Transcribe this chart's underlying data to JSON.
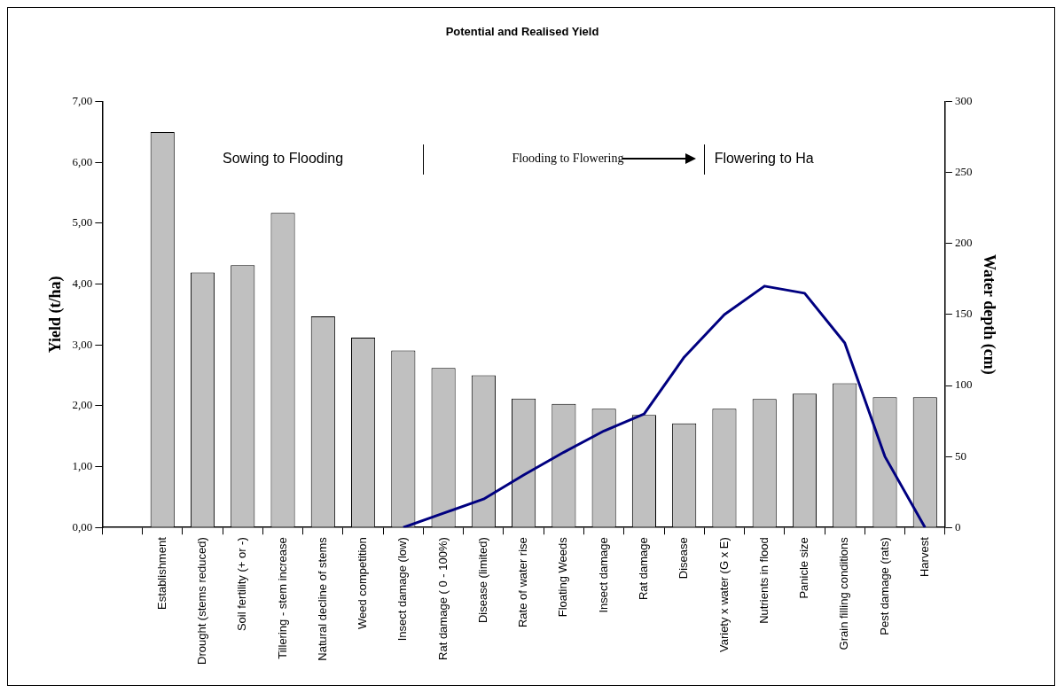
{
  "chart_data": {
    "type": "bar",
    "title": "Potential and Realised Yield",
    "ylabel": "Yield (t/ha)",
    "y2label": "Water depth (cm)",
    "categories": [
      null,
      "Establishment",
      "Drought (stems reduced)",
      "Soil fertility (+ or -)",
      "Tillering - stem increase",
      "Natural decline of stems",
      "Weed competition",
      "Insect damage (low)",
      "Rat damage ( 0 - 100%)",
      "Disease (limited)",
      "Rate of water rise",
      "Floating Weeds",
      "Insect damage",
      "Rat damage",
      "Disease",
      "Variety x water (G x E)",
      "Nutrients in flood",
      "Panicle size",
      "Grain filling conditions",
      "Pest damage (rats)",
      "Harvest"
    ],
    "series": [
      {
        "color": "#c0c0c0",
        "values": [
          null,
          6.5,
          4.19,
          4.31,
          5.17,
          3.47,
          3.12,
          2.91,
          2.62,
          2.5,
          2.12,
          2.03,
          1.95,
          1.85,
          1.71,
          1.95,
          2.11,
          2.2,
          2.37,
          2.14,
          2.14
        ]
      },
      {
        "type": "line",
        "axis": "y2",
        "color": "#000080",
        "values": [
          null,
          null,
          null,
          null,
          null,
          null,
          null,
          0,
          10,
          20,
          37,
          53,
          68,
          80,
          120,
          150,
          170,
          165,
          130,
          50,
          0
        ]
      }
    ],
    "ylim": [
      0,
      7
    ],
    "yticks": [
      {
        "value": 0,
        "label": "0,00"
      },
      {
        "value": 1,
        "label": "1,00"
      },
      {
        "value": 2,
        "label": "2,00"
      },
      {
        "value": 3,
        "label": "3,00"
      },
      {
        "value": 4,
        "label": "4,00"
      },
      {
        "value": 5,
        "label": "5,00"
      },
      {
        "value": 6,
        "label": "6,00"
      },
      {
        "value": 7,
        "label": "7,00"
      }
    ],
    "y2lim": [
      0,
      300
    ],
    "y2ticks": [
      0,
      50,
      100,
      150,
      200,
      250,
      300
    ],
    "annotations": [
      "Sowing to Flooding",
      "Flooding to Flowering",
      "Flowering to Ha"
    ],
    "grid": false,
    "legend": false,
    "marker": "none",
    "line_style": "solid"
  }
}
